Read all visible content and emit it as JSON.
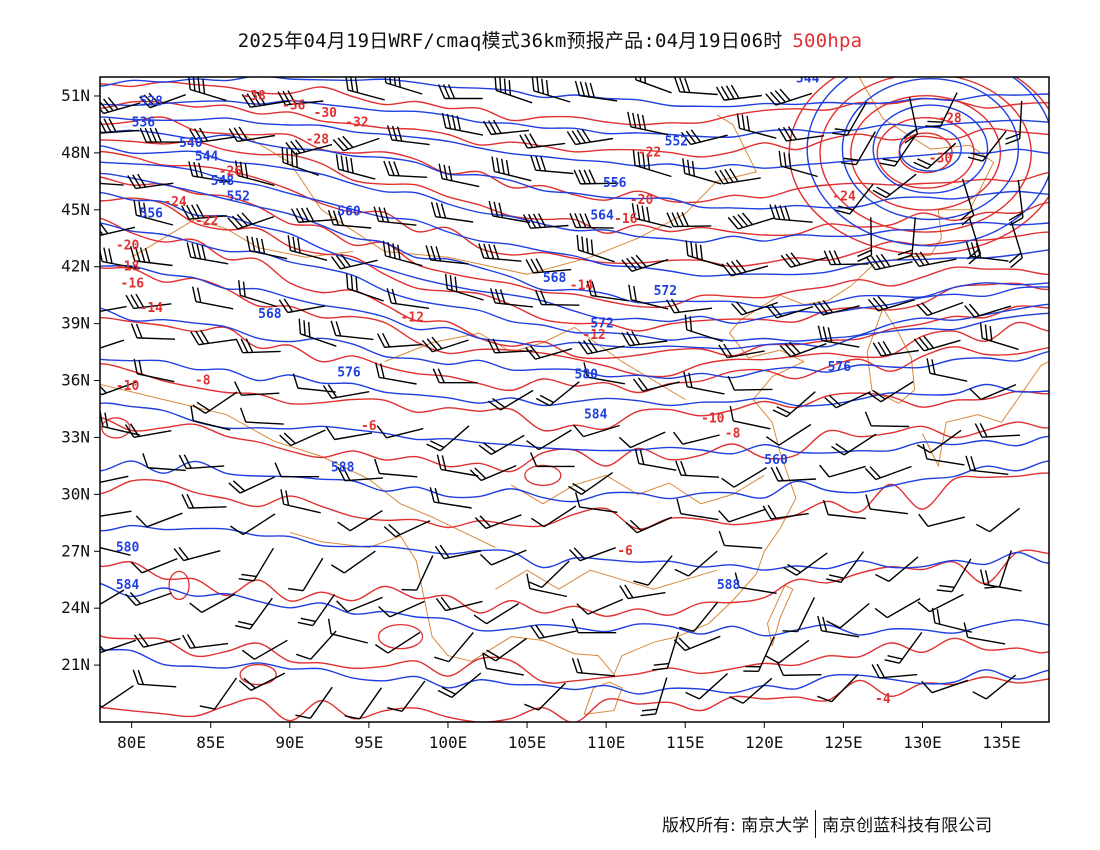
{
  "title": {
    "main": "2025年04月19日WRF/cmaq模式36km预报产品:04月19日06时",
    "level": "500hpa"
  },
  "axes": {
    "lon_labels": [
      "80E",
      "85E",
      "90E",
      "95E",
      "100E",
      "105E",
      "110E",
      "115E",
      "120E",
      "125E",
      "130E",
      "135E"
    ],
    "lat_labels": [
      "51N",
      "48N",
      "45N",
      "42N",
      "39N",
      "36N",
      "33N",
      "30N",
      "27N",
      "24N",
      "21N"
    ],
    "lon_range": [
      78,
      138
    ],
    "lat_range": [
      18,
      52
    ]
  },
  "colors": {
    "height_contour": "#1f3fe0",
    "temperature_contour": "#e03030",
    "coastline_border": "#d9883a",
    "wind_barb": "#000000"
  },
  "height_labels": [
    "528",
    "536",
    "540",
    "544",
    "548",
    "552",
    "556",
    "560",
    "564",
    "568",
    "572",
    "576",
    "580",
    "584",
    "588",
    "544",
    "552",
    "556",
    "560",
    "568",
    "572",
    "576",
    "580",
    "584",
    "588"
  ],
  "temp_labels": [
    "-38",
    "-36",
    "-32",
    "-30",
    "-28",
    "-26",
    "-24",
    "-22",
    "-20",
    "-18",
    "-16",
    "-14",
    "-12",
    "-10",
    "-8",
    "-6",
    "-4",
    "-30",
    "-28",
    "-24",
    "-22",
    "-20",
    "-16",
    "-14",
    "-12",
    "-10",
    "-8",
    "-6"
  ],
  "footer": {
    "copyright": "版权所有: 南京大学",
    "company": "南京创蓝科技有限公司"
  }
}
